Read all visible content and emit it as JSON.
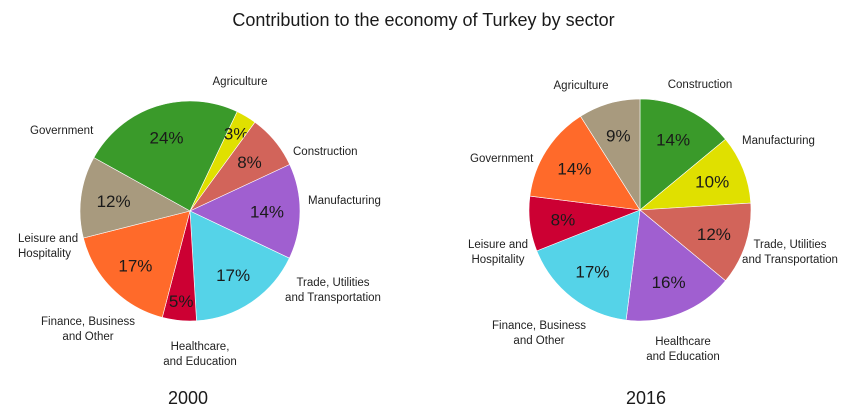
{
  "title": "Contribution to the economy of Turkey by sector",
  "chart_data": [
    {
      "type": "pie",
      "year": "2000",
      "slices": [
        {
          "label": "Agriculture",
          "value": 24,
          "color": "#3a9a2a"
        },
        {
          "label": "Construction",
          "value": 3,
          "color": "#e0e000"
        },
        {
          "label": "Manufacturing",
          "value": 8,
          "color": "#d2645a"
        },
        {
          "label": "Trade, Utilities and Transportation",
          "value": 14,
          "color": "#a05fd0"
        },
        {
          "label": "Healthcare, and Education",
          "value": 17,
          "color": "#55d3e8"
        },
        {
          "label": "Finance, Business and Other",
          "value": 5,
          "color": "#cc0033"
        },
        {
          "label": "Leisure and Hospitality",
          "value": 17,
          "color": "#ff6a2a"
        },
        {
          "label": "Government",
          "value": 12,
          "color": "#a89a7e"
        }
      ]
    },
    {
      "type": "pie",
      "year": "2016",
      "slices": [
        {
          "label": "Agriculture",
          "value": 14,
          "color": "#3a9a2a"
        },
        {
          "label": "Construction",
          "value": 10,
          "color": "#e0e000"
        },
        {
          "label": "Manufacturing",
          "value": 12,
          "color": "#d2645a"
        },
        {
          "label": "Trade, Utilities and Transportation",
          "value": 16,
          "color": "#a05fd0"
        },
        {
          "label": "Healthcare and Education",
          "value": 17,
          "color": "#55d3e8"
        },
        {
          "label": "Finance, Business and Other",
          "value": 8,
          "color": "#cc0033"
        },
        {
          "label": "Leisure and Hospitality",
          "value": 14,
          "color": "#ff6a2a"
        },
        {
          "label": "Government",
          "value": 9,
          "color": "#a89a7e"
        }
      ]
    }
  ]
}
